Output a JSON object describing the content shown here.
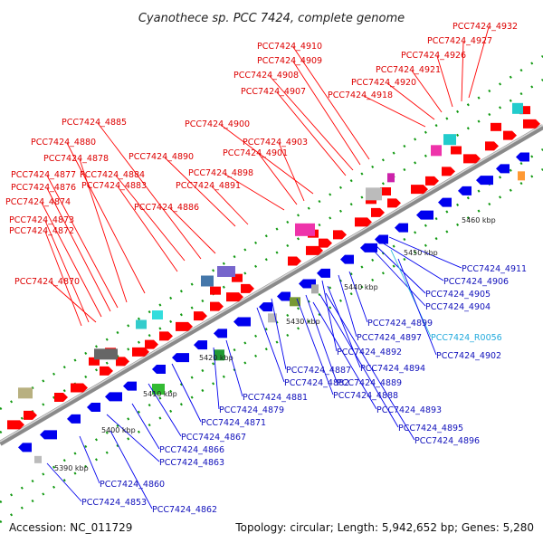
{
  "title": "Cyanothece sp. PCC 7424, complete genome",
  "footer": {
    "accession": "Accession: NC_011729",
    "summary": "Topology: circular; Length: 5,942,652 bp; Genes: 5,280"
  },
  "colors": {
    "forward": "#ff0000",
    "reverse": "#0000ee",
    "rna": "#33bbdd",
    "backbone": "#888888",
    "tick": "#119911"
  },
  "scale_labels": [
    "5390 kbp",
    "5400 kbp",
    "5410 kbp",
    "5420 kbp",
    "5430 kbp",
    "5440 kbp",
    "5450 kbp",
    "5460 kbp"
  ],
  "top_labels": [
    "PCC7424_4932",
    "PCC7424_4927",
    "PCC7424_4926",
    "PCC7424_4921",
    "PCC7424_4920",
    "PCC7424_4918",
    "PCC7424_4910",
    "PCC7424_4909",
    "PCC7424_4908",
    "PCC7424_4907",
    "PCC7424_4900",
    "PCC7424_4885",
    "PCC7424_4903",
    "PCC7424_4901",
    "PCC7424_4890",
    "PCC7424_4880",
    "PCC7424_4898",
    "PCC7424_4884",
    "PCC7424_4878",
    "PCC7424_4891",
    "PCC7424_4877",
    "PCC7424_4883",
    "PCC7424_4876",
    "PCC7424_4874",
    "PCC7424_4886",
    "PCC7424_4873",
    "PCC7424_4872",
    "PCC7424_4870"
  ],
  "bottom_labels": [
    "PCC7424_4911",
    "PCC7424_4906",
    "PCC7424_4905",
    "PCC7424_4904",
    "PCC7424_4899",
    "PCC7424_R0056",
    "PCC7424_4897",
    "PCC7424_4902",
    "PCC7424_4892",
    "PCC7424_4887",
    "PCC7424_4894",
    "PCC7424_4882",
    "PCC7424_4889",
    "PCC7424_4888",
    "PCC7424_4881",
    "PCC7424_4879",
    "PCC7424_4893",
    "PCC7424_4895",
    "PCC7424_4896",
    "PCC7424_4871",
    "PCC7424_4867",
    "PCC7424_4866",
    "PCC7424_4863",
    "PCC7424_4860",
    "PCC7424_4853",
    "PCC7424_4862"
  ]
}
